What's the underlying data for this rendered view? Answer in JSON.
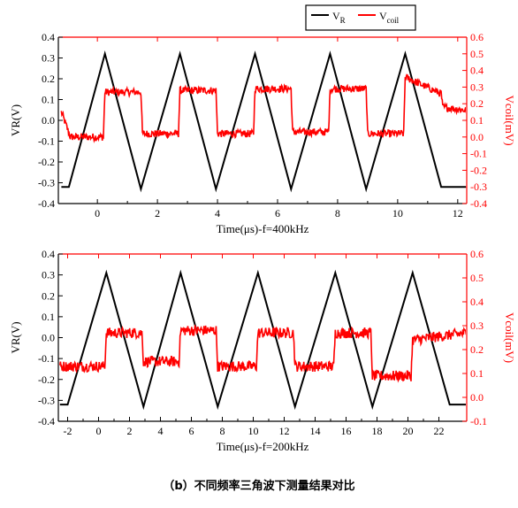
{
  "caption": "（b）不同频率三角波下测量结果对比",
  "legend": {
    "vr_label": "V",
    "vr_sub": "R",
    "vcoil_label": "V",
    "vcoil_sub": "coil"
  },
  "colors": {
    "vr": "#000000",
    "vcoil": "#ff0000"
  },
  "chart_data": [
    {
      "type": "line",
      "frequency_label": "400kHz",
      "xlabel": "Time(μs)-f=400kHz",
      "ylabel_left": "VR(V)",
      "ylabel_right": "Vcoil(mV)",
      "xlim": [
        -1.3,
        12.3
      ],
      "ylim_left": [
        -0.4,
        0.4
      ],
      "ylim_right": [
        -0.4,
        0.6
      ],
      "xticks": [
        0,
        2,
        4,
        6,
        8,
        10,
        12
      ],
      "yticks_left": [
        -0.4,
        -0.3,
        -0.2,
        -0.1,
        0.0,
        0.1,
        0.2,
        0.3,
        0.4
      ],
      "yticks_right": [
        -0.4,
        -0.3,
        -0.2,
        -0.1,
        0.0,
        0.1,
        0.2,
        0.3,
        0.4,
        0.5,
        0.6
      ],
      "series": [
        {
          "name": "VR",
          "axis": "left",
          "x": [
            -1.2,
            -0.95,
            0.25,
            1.45,
            2.75,
            3.95,
            5.25,
            6.45,
            7.75,
            8.95,
            10.25,
            11.45,
            12.3
          ],
          "y": [
            -0.32,
            -0.32,
            0.32,
            -0.33,
            0.32,
            -0.33,
            0.32,
            -0.33,
            0.32,
            -0.33,
            0.32,
            -0.32,
            -0.32
          ]
        },
        {
          "name": "Vcoil",
          "axis": "right",
          "x": [
            -1.2,
            -1.0,
            -0.9,
            0.2,
            0.25,
            1.45,
            1.5,
            2.7,
            2.75,
            3.95,
            4.0,
            5.2,
            5.25,
            6.45,
            6.5,
            7.7,
            7.75,
            8.95,
            9.0,
            10.2,
            10.25,
            11.45,
            11.5,
            12.3
          ],
          "y": [
            0.15,
            0.05,
            0.0,
            0.0,
            0.27,
            0.27,
            0.02,
            0.02,
            0.28,
            0.28,
            0.02,
            0.02,
            0.29,
            0.29,
            0.03,
            0.03,
            0.29,
            0.29,
            0.02,
            0.02,
            0.36,
            0.26,
            0.18,
            0.16
          ]
        }
      ]
    },
    {
      "type": "line",
      "frequency_label": "200kHz",
      "xlabel": "Time(μs)-f=200kHz",
      "ylabel_left": "VR(V)",
      "ylabel_right": "Vcoil(mV)",
      "xlim": [
        -2.6,
        23.8
      ],
      "ylim_left": [
        -0.4,
        0.4
      ],
      "ylim_right": [
        -0.1,
        0.6
      ],
      "xticks": [
        -2,
        0,
        2,
        4,
        6,
        8,
        10,
        12,
        14,
        16,
        18,
        20,
        22
      ],
      "yticks_left": [
        -0.4,
        -0.3,
        -0.2,
        -0.1,
        0.0,
        0.1,
        0.2,
        0.3,
        0.4
      ],
      "yticks_right": [
        -0.1,
        0.0,
        0.1,
        0.2,
        0.3,
        0.4,
        0.5,
        0.6
      ],
      "series": [
        {
          "name": "VR",
          "axis": "left",
          "x": [
            -2.5,
            -2.0,
            0.5,
            2.9,
            5.3,
            7.7,
            10.3,
            12.7,
            15.3,
            17.7,
            20.3,
            22.7,
            23.8
          ],
          "y": [
            -0.32,
            -0.32,
            0.31,
            -0.33,
            0.31,
            -0.33,
            0.31,
            -0.33,
            0.31,
            -0.33,
            0.31,
            -0.32,
            -0.32
          ]
        },
        {
          "name": "Vcoil",
          "axis": "right",
          "x": [
            -2.5,
            0.4,
            0.5,
            2.8,
            2.9,
            5.2,
            5.3,
            7.6,
            7.7,
            10.2,
            10.3,
            12.6,
            12.7,
            15.2,
            15.3,
            17.6,
            17.7,
            20.2,
            20.3,
            23.8
          ],
          "y": [
            0.13,
            0.13,
            0.27,
            0.27,
            0.15,
            0.15,
            0.28,
            0.28,
            0.13,
            0.13,
            0.27,
            0.27,
            0.13,
            0.13,
            0.27,
            0.27,
            0.09,
            0.09,
            0.24,
            0.27
          ]
        }
      ]
    }
  ]
}
